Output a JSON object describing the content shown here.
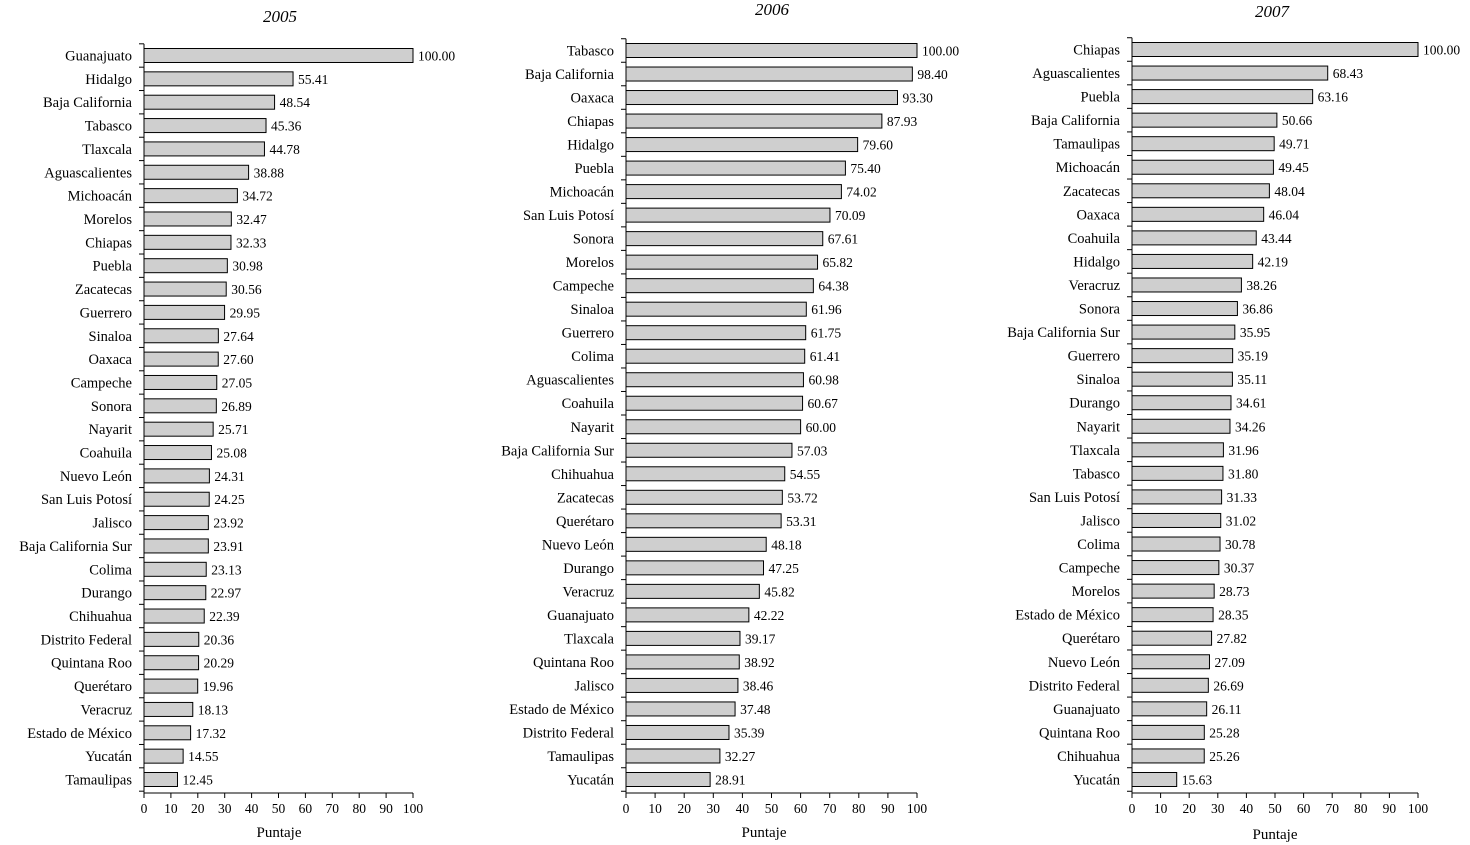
{
  "chart_data": [
    {
      "type": "bar",
      "orientation": "horizontal",
      "title": "2005",
      "xlabel": "Puntaje",
      "ylabel": "",
      "xlim": [
        0,
        100
      ],
      "x_ticks": [
        "0",
        "10",
        "20",
        "30",
        "40",
        "50",
        "60",
        "70",
        "80",
        "90",
        "100"
      ],
      "categories": [
        "Guanajuato",
        "Hidalgo",
        "Baja California",
        "Tabasco",
        "Tlaxcala",
        "Aguascalientes",
        "Michoacán",
        "Morelos",
        "Chiapas",
        "Puebla",
        "Zacatecas",
        "Guerrero",
        "Sinaloa",
        "Oaxaca",
        "Campeche",
        "Sonora",
        "Nayarit",
        "Coahuila",
        "Nuevo León",
        "San Luis Potosí",
        "Jalisco",
        "Baja California Sur",
        "Colima",
        "Durango",
        "Chihuahua",
        "Distrito Federal",
        "Quintana Roo",
        "Querétaro",
        "Veracruz",
        "Estado de México",
        "Yucatán",
        "Tamaulipas"
      ],
      "values": [
        100.0,
        55.41,
        48.54,
        45.36,
        44.78,
        38.88,
        34.72,
        32.47,
        32.33,
        30.98,
        30.56,
        29.95,
        27.64,
        27.6,
        27.05,
        26.89,
        25.71,
        25.08,
        24.31,
        24.25,
        23.92,
        23.91,
        23.13,
        22.97,
        22.39,
        20.36,
        20.29,
        19.96,
        18.13,
        17.32,
        14.55,
        12.45
      ],
      "value_labels": [
        "100.00",
        "55.41",
        "48.54",
        "45.36",
        "44.78",
        "38.88",
        "34.72",
        "32.47",
        "32.33",
        "30.98",
        "30.56",
        "29.95",
        "27.64",
        "27.60",
        "27.05",
        "26.89",
        "25.71",
        "25.08",
        "24.31",
        "24.25",
        "23.92",
        "23.91",
        "23.13",
        "22.97",
        "22.39",
        "20.36",
        "20.29",
        "19.96",
        "18.13",
        "17.32",
        "14.55",
        "12.45"
      ],
      "bar_color": "#cfcfcf"
    },
    {
      "type": "bar",
      "orientation": "horizontal",
      "title": "2006",
      "xlabel": "Puntaje",
      "ylabel": "",
      "xlim": [
        0,
        100
      ],
      "x_ticks": [
        "0",
        "10",
        "20",
        "30",
        "40",
        "50",
        "60",
        "70",
        "80",
        "90",
        "100"
      ],
      "categories": [
        "Tabasco",
        "Baja California",
        "Oaxaca",
        "Chiapas",
        "Hidalgo",
        "Puebla",
        "Michoacán",
        "San Luis Potosí",
        "Sonora",
        "Morelos",
        "Campeche",
        "Sinaloa",
        "Guerrero",
        "Colima",
        "Aguascalientes",
        "Coahuila",
        "Nayarit",
        "Baja California Sur",
        "Chihuahua",
        "Zacatecas",
        "Querétaro",
        "Nuevo León",
        "Durango",
        "Veracruz",
        "Guanajuato",
        "Tlaxcala",
        "Quintana Roo",
        "Jalisco",
        "Estado de México",
        "Distrito Federal",
        "Tamaulipas",
        "Yucatán"
      ],
      "values": [
        100.0,
        98.4,
        93.3,
        87.93,
        79.6,
        75.4,
        74.02,
        70.09,
        67.61,
        65.82,
        64.38,
        61.96,
        61.75,
        61.41,
        60.98,
        60.67,
        60.0,
        57.03,
        54.55,
        53.72,
        53.31,
        48.18,
        47.25,
        45.82,
        42.22,
        39.17,
        38.92,
        38.46,
        37.48,
        35.39,
        32.27,
        28.91
      ],
      "value_labels": [
        "100.00",
        "98.40",
        "93.30",
        "87.93",
        "79.60",
        "75.40",
        "74.02",
        "70.09",
        "67.61",
        "65.82",
        "64.38",
        "61.96",
        "61.75",
        "61.41",
        "60.98",
        "60.67",
        "60.00",
        "57.03",
        "54.55",
        "53.72",
        "53.31",
        "48.18",
        "47.25",
        "45.82",
        "42.22",
        "39.17",
        "38.92",
        "38.46",
        "37.48",
        "35.39",
        "32.27",
        "28.91"
      ],
      "bar_color": "#cfcfcf"
    },
    {
      "type": "bar",
      "orientation": "horizontal",
      "title": "2007",
      "xlabel": "Puntaje",
      "ylabel": "",
      "xlim": [
        0,
        100
      ],
      "x_ticks": [
        "0",
        "10",
        "20",
        "30",
        "40",
        "50",
        "60",
        "70",
        "80",
        "90",
        "100"
      ],
      "categories": [
        "Chiapas",
        "Aguascalientes",
        "Puebla",
        "Baja California",
        "Tamaulipas",
        "Michoacán",
        "Zacatecas",
        "Oaxaca",
        "Coahuila",
        "Hidalgo",
        "Veracruz",
        "Sonora",
        "Baja California Sur",
        "Guerrero",
        "Sinaloa",
        "Durango",
        "Nayarit",
        "Tlaxcala",
        "Tabasco",
        "San Luis Potosí",
        "Jalisco",
        "Colima",
        "Campeche",
        "Morelos",
        "Estado de México",
        "Querétaro",
        "Nuevo León",
        "Distrito Federal",
        "Guanajuato",
        "Quintana Roo",
        "Chihuahua",
        "Yucatán"
      ],
      "values": [
        100.0,
        68.43,
        63.16,
        50.66,
        49.71,
        49.45,
        48.04,
        46.04,
        43.44,
        42.19,
        38.26,
        36.86,
        35.95,
        35.19,
        35.11,
        34.61,
        34.26,
        31.96,
        31.8,
        31.33,
        31.02,
        30.78,
        30.37,
        28.73,
        28.35,
        27.82,
        27.09,
        26.69,
        26.11,
        25.28,
        25.26,
        15.63
      ],
      "value_labels": [
        "100.00",
        "68.43",
        "63.16",
        "50.66",
        "49.71",
        "49.45",
        "48.04",
        "46.04",
        "43.44",
        "42.19",
        "38.26",
        "36.86",
        "35.95",
        "35.19",
        "35.11",
        "34.61",
        "34.26",
        "31.96",
        "31.80",
        "31.33",
        "31.02",
        "30.78",
        "30.37",
        "28.73",
        "28.35",
        "27.82",
        "27.09",
        "26.69",
        "26.11",
        "25.28",
        "25.26",
        "15.63"
      ],
      "bar_color": "#cfcfcf"
    }
  ]
}
